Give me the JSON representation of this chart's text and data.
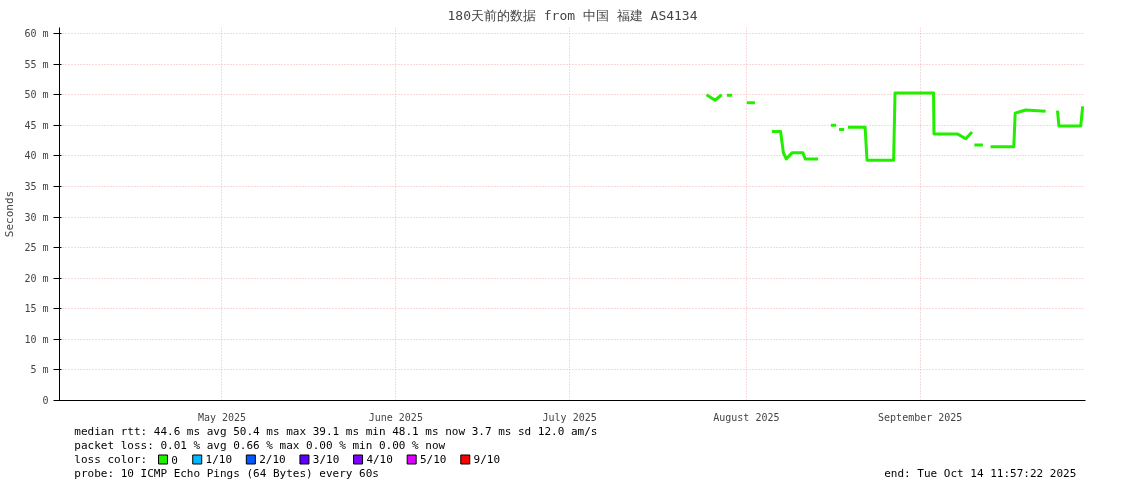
{
  "chart_data": {
    "type": "line",
    "title": "180天前的数据 from 中国 福建 AS4134",
    "ylabel": "Seconds",
    "xlim": [
      "2025-04-17T11:57",
      "2025-10-14T11:57"
    ],
    "xticks": [
      {
        "value": "2025-05-16",
        "label": "May 2025"
      },
      {
        "value": "2025-06-15T12:00",
        "label": "June 2025"
      },
      {
        "value": "2025-07-16",
        "label": "July 2025"
      },
      {
        "value": "2025-08-16",
        "label": "August 2025"
      },
      {
        "value": "2025-09-15T12:00",
        "label": "September 2025"
      }
    ],
    "ylim": [
      0,
      61
    ],
    "yticks": [
      0,
      {
        "value": 5,
        "label": "5 m"
      },
      {
        "value": 10,
        "label": "10 m"
      },
      {
        "value": 15,
        "label": "15 m"
      },
      {
        "value": 20,
        "label": "20 m"
      },
      {
        "value": 25,
        "label": "25 m"
      },
      {
        "value": 30,
        "label": "30 m"
      },
      {
        "value": 35,
        "label": "35 m"
      },
      {
        "value": 40,
        "label": "40 m"
      },
      {
        "value": 45,
        "label": "45 m"
      },
      {
        "value": 50,
        "label": "50 m"
      },
      {
        "value": 55,
        "label": "55 m"
      },
      {
        "value": 60,
        "label": "60 m"
      }
    ],
    "grid": true,
    "legend": "bottom left",
    "legend_title": "loss color:",
    "series": [
      {
        "name": "0",
        "color": "#22ee00",
        "x": [
          "2025-08-09T00:00",
          "2025-08-10T12:00",
          "2025-08-11T16:00",
          "2025-08-12T00:00",
          "2025-08-12T14:00",
          "2025-08-13T12:00",
          "2025-08-14T00:00",
          "2025-08-16T02:00",
          "2025-08-17T12:00",
          "2025-08-18T00:00",
          "2025-08-20T12:00",
          "2025-08-22T00:00",
          "2025-08-22T12:00",
          "2025-08-23T00:00",
          "2025-08-24T00:00",
          "2025-08-25T22:00",
          "2025-08-26T08:00",
          "2025-08-28T14:00",
          "2025-08-30T00:00",
          "2025-08-30T20:00",
          "2025-08-31T18:00",
          "2025-09-01T00:00",
          "2025-09-01T06:00",
          "2025-09-02T04:00",
          "2025-09-02T12:00",
          "2025-09-02T20:00",
          "2025-09-05T20:00",
          "2025-09-06T04:00",
          "2025-09-10T20:00",
          "2025-09-11T02:00",
          "2025-09-17T20:00",
          "2025-09-17T22:00",
          "2025-09-22T00:00",
          "2025-09-23T12:00",
          "2025-09-24T14:00",
          "2025-09-24T20:00",
          "2025-09-25T00:00",
          "2025-09-26T12:00",
          "2025-09-27T00:00",
          "2025-09-27T20:00",
          "2025-10-01T22:00",
          "2025-10-02T04:00",
          "2025-10-04T00:00",
          "2025-10-07T12:00",
          "2025-10-08T00:00",
          "2025-10-09T14:00",
          "2025-10-09T20:00",
          "2025-10-13T16:00",
          "2025-10-14T00:00"
        ],
        "values": [
          50.0,
          49.1,
          50.0,
          null,
          49.9,
          49.9,
          null,
          48.7,
          48.7,
          null,
          44.0,
          44.0,
          40.5,
          39.5,
          40.5,
          40.5,
          39.5,
          39.5,
          null,
          45.0,
          45.0,
          null,
          44.3,
          44.3,
          null,
          44.7,
          44.7,
          39.3,
          39.3,
          50.3,
          50.3,
          43.6,
          43.6,
          42.8,
          43.9,
          null,
          41.8,
          41.8,
          null,
          41.5,
          41.5,
          47.0,
          47.5,
          47.3,
          null,
          47.4,
          44.9,
          44.9,
          48.1
        ]
      },
      {
        "name": "1/10",
        "color": "#00b8ff"
      },
      {
        "name": "2/10",
        "color": "#0059ff"
      },
      {
        "name": "3/10",
        "color": "#5e00ff"
      },
      {
        "name": "4/10",
        "color": "#7e00ff"
      },
      {
        "name": "5/10",
        "color": "#dd00ff"
      },
      {
        "name": "9/10",
        "color": "#ff0000"
      }
    ],
    "annotations": [
      "median rtt:  44.6 ms avg  50.4 ms max  39.1 ms min  48.1 ms now  3.7 ms sd  12.0   am/s",
      "packet loss: 0.01 % avg  0.66 % max  0.00 % min  0.00 % now",
      "probe:       10 ICMP Echo Pings (64 Bytes) every 60s",
      "end: Tue Oct 14 11:57:22 2025"
    ]
  }
}
